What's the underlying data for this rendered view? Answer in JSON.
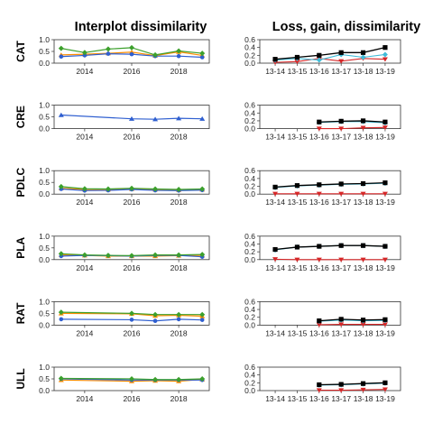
{
  "colors": {
    "interplot": [
      "#ff8c00",
      "#2f5fd0",
      "#3ca02c"
    ],
    "loss": "#d62728",
    "gain": "#40bcd8",
    "dissimilarity": "#000000"
  },
  "chart_data": [
    {
      "type": "line",
      "title": "Interplot dissimilarity",
      "x_ticks": [
        "2014",
        "2016",
        "2018"
      ],
      "xlim": [
        2012.7,
        2019.3
      ],
      "y_ticks": [
        "0.0",
        "0.5",
        "1.0"
      ],
      "ylim": [
        0,
        1.0
      ],
      "panels": [
        {
          "label": "CAT",
          "x": [
            2013,
            2014,
            2015,
            2016,
            2017,
            2018,
            2019
          ],
          "series": [
            {
              "color": "#ff8c00",
              "values": [
                0.35,
                0.38,
                0.42,
                0.47,
                0.32,
                0.48,
                0.33
              ]
            },
            {
              "color": "#2f5fd0",
              "values": [
                0.28,
                0.33,
                0.4,
                0.38,
                0.3,
                0.3,
                0.25
              ]
            },
            {
              "color": "#3ca02c",
              "values": [
                0.63,
                0.45,
                0.6,
                0.66,
                0.35,
                0.52,
                0.42
              ]
            }
          ]
        },
        {
          "label": "CRE",
          "x": [
            2013,
            2016,
            2017,
            2018,
            2019
          ],
          "series": [
            {
              "color": "#2f5fd0",
              "values": [
                0.58,
                0.42,
                0.4,
                0.44,
                0.42
              ]
            }
          ]
        },
        {
          "label": "PDLC",
          "x": [
            2013,
            2014,
            2015,
            2016,
            2017,
            2018,
            2019
          ],
          "series": [
            {
              "color": "#ff8c00",
              "values": [
                0.25,
                0.2,
                0.2,
                0.22,
                0.2,
                0.18,
                0.2
              ]
            },
            {
              "color": "#2f5fd0",
              "values": [
                0.22,
                0.15,
                0.16,
                0.2,
                0.16,
                0.15,
                0.17
              ]
            },
            {
              "color": "#3ca02c",
              "values": [
                0.32,
                0.23,
                0.22,
                0.25,
                0.22,
                0.2,
                0.22
              ]
            }
          ]
        },
        {
          "label": "PLA",
          "x": [
            2013,
            2014,
            2015,
            2016,
            2017,
            2018,
            2019
          ],
          "series": [
            {
              "color": "#ff8c00",
              "values": [
                0.2,
                0.18,
                0.15,
                0.15,
                0.15,
                0.17,
                0.18
              ]
            },
            {
              "color": "#2f5fd0",
              "values": [
                0.15,
                0.18,
                0.17,
                0.15,
                0.18,
                0.18,
                0.12
              ]
            },
            {
              "color": "#3ca02c",
              "values": [
                0.25,
                0.2,
                0.18,
                0.17,
                0.2,
                0.2,
                0.22
              ]
            }
          ]
        },
        {
          "label": "RAT",
          "x": [
            2013,
            2016,
            2017,
            2018,
            2019
          ],
          "series": [
            {
              "color": "#ff8c00",
              "values": [
                0.5,
                0.48,
                0.4,
                0.42,
                0.38
              ]
            },
            {
              "color": "#2f5fd0",
              "values": [
                0.25,
                0.23,
                0.18,
                0.25,
                0.22
              ]
            },
            {
              "color": "#3ca02c",
              "values": [
                0.55,
                0.5,
                0.45,
                0.45,
                0.45
              ]
            }
          ]
        },
        {
          "label": "ULL",
          "x": [
            2013,
            2016,
            2017,
            2018,
            2019
          ],
          "series": [
            {
              "color": "#ff8c00",
              "values": [
                0.45,
                0.4,
                0.42,
                0.4,
                0.48
              ]
            },
            {
              "color": "#2f5fd0",
              "values": [
                0.5,
                0.45,
                0.45,
                0.45,
                0.45
              ]
            },
            {
              "color": "#3ca02c",
              "values": [
                0.52,
                0.5,
                0.47,
                0.47,
                0.5
              ]
            }
          ]
        }
      ]
    },
    {
      "type": "line",
      "title": "Loss, gain, dissimilarity",
      "categories": [
        "13-14",
        "13-15",
        "13-16",
        "13-17",
        "13-18",
        "13-19"
      ],
      "y_ticks": [
        "0.0",
        "0.2",
        "0.4",
        "0.6"
      ],
      "ylim": [
        0,
        0.6
      ],
      "panels": [
        {
          "label": "CAT",
          "start": 0,
          "series": [
            {
              "role": "loss",
              "color": "#d62728",
              "values": [
                0.02,
                0.04,
                0.12,
                0.05,
                0.12,
                0.1
              ]
            },
            {
              "role": "gain",
              "color": "#40bcd8",
              "values": [
                0.08,
                0.12,
                0.08,
                0.22,
                0.15,
                0.22
              ]
            },
            {
              "role": "dissimilarity",
              "color": "#000000",
              "values": [
                0.1,
                0.15,
                0.2,
                0.27,
                0.27,
                0.4
              ]
            }
          ]
        },
        {
          "label": "CRE",
          "start": 2,
          "series": [
            {
              "role": "loss",
              "color": "#d62728",
              "values": [
                0.0,
                0.0,
                0.02,
                0.03
              ]
            },
            {
              "role": "gain",
              "color": "#40bcd8",
              "values": [
                0.16,
                0.18,
                0.18,
                0.15
              ]
            },
            {
              "role": "dissimilarity",
              "color": "#000000",
              "values": [
                0.17,
                0.19,
                0.2,
                0.17
              ]
            }
          ]
        },
        {
          "label": "PDLC",
          "start": 0,
          "series": [
            {
              "role": "loss",
              "color": "#d62728",
              "values": [
                0.01,
                0.01,
                0.01,
                0.01,
                0.01,
                0.01
              ]
            },
            {
              "role": "gain",
              "color": "#40bcd8",
              "values": [
                0.17,
                0.21,
                0.23,
                0.25,
                0.26,
                0.28
              ]
            },
            {
              "role": "dissimilarity",
              "color": "#000000",
              "values": [
                0.18,
                0.22,
                0.24,
                0.26,
                0.27,
                0.29
              ]
            }
          ]
        },
        {
          "label": "PLA",
          "start": 0,
          "series": [
            {
              "role": "loss",
              "color": "#d62728",
              "values": [
                0.01,
                0.0,
                0.0,
                0.0,
                0.0,
                0.0
              ]
            },
            {
              "role": "gain",
              "color": "#40bcd8",
              "values": [
                0.25,
                0.32,
                0.34,
                0.36,
                0.36,
                0.34
              ]
            },
            {
              "role": "dissimilarity",
              "color": "#000000",
              "values": [
                0.26,
                0.32,
                0.34,
                0.36,
                0.36,
                0.34
              ]
            }
          ]
        },
        {
          "label": "RAT",
          "start": 2,
          "series": [
            {
              "role": "loss",
              "color": "#d62728",
              "values": [
                0.01,
                0.02,
                0.02,
                0.02
              ]
            },
            {
              "role": "gain",
              "color": "#40bcd8",
              "values": [
                0.1,
                0.13,
                0.11,
                0.12
              ]
            },
            {
              "role": "dissimilarity",
              "color": "#000000",
              "values": [
                0.11,
                0.15,
                0.13,
                0.14
              ]
            }
          ]
        },
        {
          "label": "ULL",
          "start": 2,
          "series": [
            {
              "role": "loss",
              "color": "#d62728",
              "values": [
                0.01,
                0.01,
                0.02,
                0.03
              ]
            },
            {
              "role": "gain",
              "color": "#40bcd8",
              "values": [
                0.14,
                0.15,
                0.17,
                0.19
              ]
            },
            {
              "role": "dissimilarity",
              "color": "#000000",
              "values": [
                0.15,
                0.16,
                0.18,
                0.2
              ]
            }
          ]
        }
      ]
    }
  ]
}
